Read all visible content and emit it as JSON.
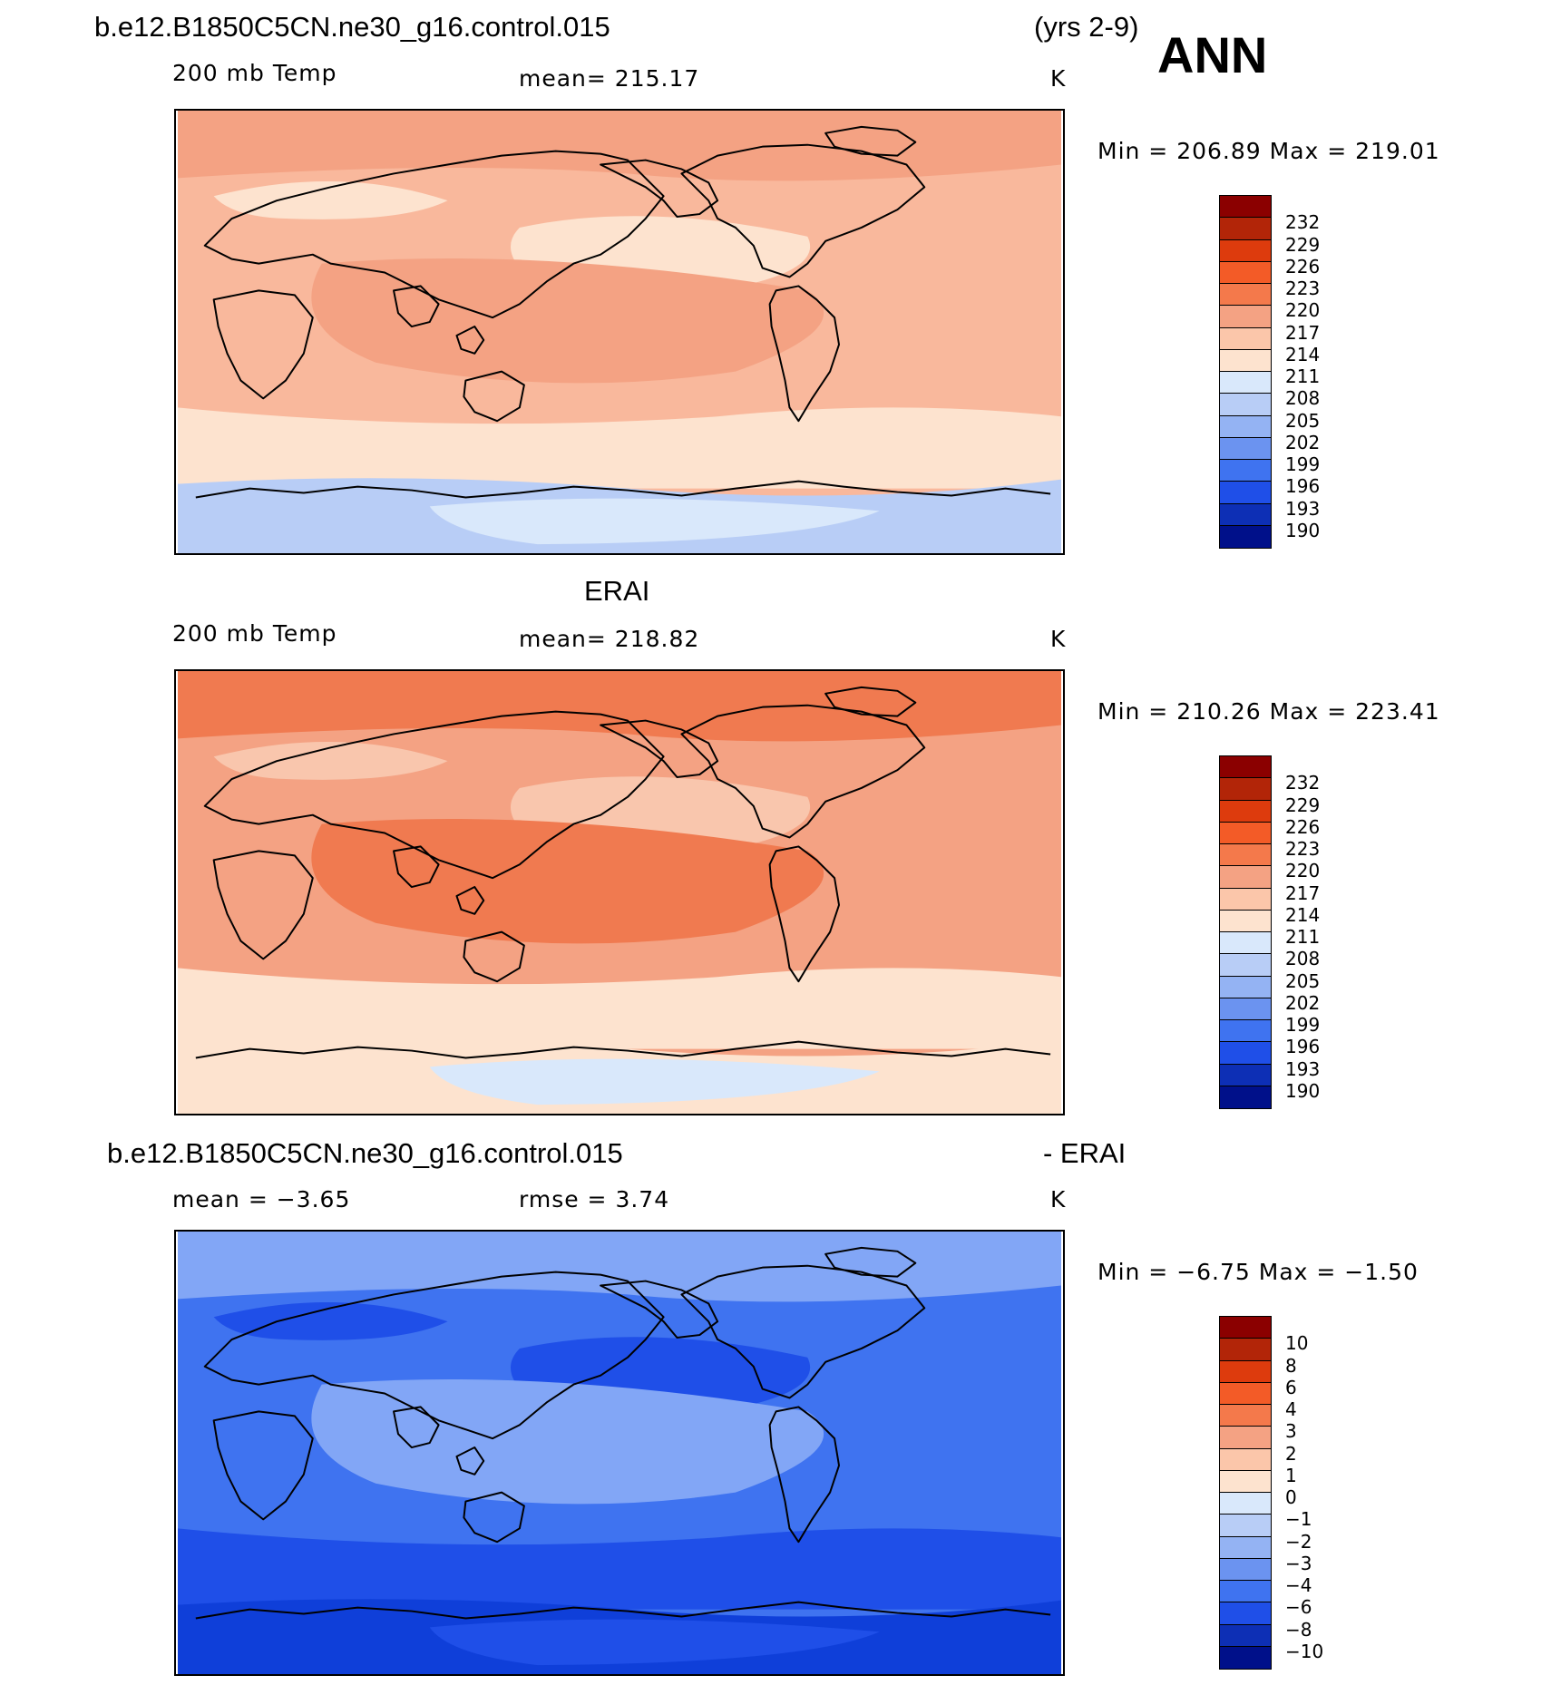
{
  "header": {
    "case_name": "b.e12.B1850C5CN.ne30_g16.control.015",
    "years": "(yrs 2-9)",
    "season": "ANN"
  },
  "panels": [
    {
      "id": "model",
      "variable": "200 mb Temp",
      "stat": "mean=  215.17",
      "units": "K",
      "minmax": "Min  =  206.89  Max  =  219.01",
      "colors": {
        "ocean_base": "#f9b89c",
        "band_warm": "#f4a283",
        "band_cool": "#fde3cf",
        "south_band": "#fde3cf",
        "polar": "#b8cdf6",
        "antarctic": "#d9e8fb"
      }
    },
    {
      "id": "obs",
      "title": "ERAI",
      "variable": "200 mb Temp",
      "stat": "mean=  218.82",
      "units": "K",
      "minmax": "Min  =  210.26  Max  =  223.41",
      "colors": {
        "ocean_base": "#f4a283",
        "band_warm": "#f07a50",
        "band_cool": "#f9c6ad",
        "south_band": "#fde3cf",
        "polar": "#fde3cf",
        "antarctic": "#d9e8fb"
      }
    },
    {
      "id": "diff",
      "title_left": "b.e12.B1850C5CN.ne30_g16.control.015",
      "title_right": "- ERAI",
      "stat_left": "mean =    −3.65",
      "stat": "rmse =     3.74",
      "units": "K",
      "minmax": "Min  =    −6.75  Max  =   −1.50",
      "colors": {
        "ocean_base": "#3f73f0",
        "band_warm": "#82a6f6",
        "band_cool": "#1f4fe8",
        "south_band": "#1f4fe8",
        "polar": "#0f3fd9",
        "antarctic": "#1f4fe8"
      }
    }
  ],
  "colorbars": {
    "temp": {
      "labels": [
        "232",
        "229",
        "226",
        "223",
        "220",
        "217",
        "214",
        "211",
        "208",
        "205",
        "202",
        "199",
        "196",
        "193",
        "190"
      ],
      "colors": [
        "#8b0000",
        "#b22508",
        "#dd3b0d",
        "#f35b27",
        "#f4794b",
        "#f4a283",
        "#fbc6aa",
        "#fde3cf",
        "#d9e8fb",
        "#b8cdf6",
        "#94b3f3",
        "#6b93f0",
        "#3f73f0",
        "#1f4fe8",
        "#0d2fb5",
        "#00108a"
      ]
    },
    "diff": {
      "labels": [
        "10",
        "8",
        "6",
        "4",
        "3",
        "2",
        "1",
        "0",
        "−1",
        "−2",
        "−3",
        "−4",
        "−6",
        "−8",
        "−10"
      ],
      "colors": [
        "#8b0000",
        "#b22508",
        "#dd3b0d",
        "#f35b27",
        "#f4794b",
        "#f4a283",
        "#fbc6aa",
        "#fde3cf",
        "#d9e8fb",
        "#b8cdf6",
        "#94b3f3",
        "#6b93f0",
        "#3f73f0",
        "#1f4fe8",
        "#0d2fb5",
        "#00108a"
      ]
    }
  }
}
